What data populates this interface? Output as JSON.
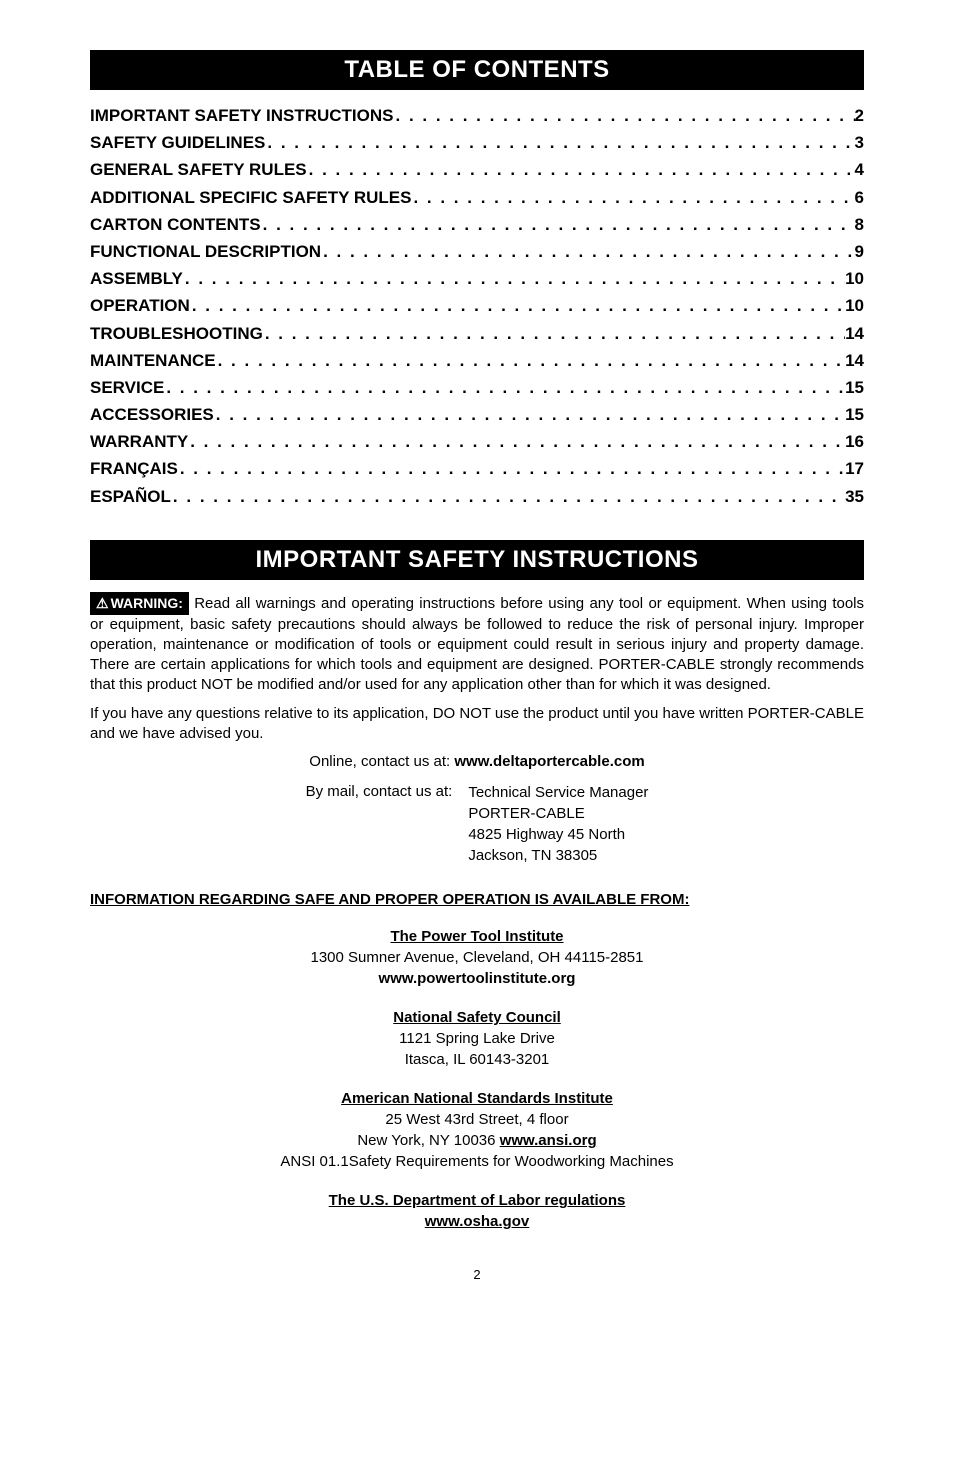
{
  "colors": {
    "background": "#ffffff",
    "header_bg": "#000000",
    "header_text": "#ffffff",
    "body_text": "#000000"
  },
  "typography": {
    "header_fontsize": 24,
    "toc_fontsize": 17,
    "body_fontsize": 15,
    "pagenum_fontsize": 13
  },
  "toc_header": "TABLE OF CONTENTS",
  "toc_items": [
    {
      "label": "IMPORTANT SAFETY INSTRUCTIONS",
      "page": "2"
    },
    {
      "label": "SAFETY GUIDELINES",
      "page": "3"
    },
    {
      "label": "GENERAL SAFETY RULES",
      "page": "4"
    },
    {
      "label": "ADDITIONAL SPECIFIC SAFETY RULES",
      "page": "6"
    },
    {
      "label": "CARTON CONTENTS",
      "page": "8"
    },
    {
      "label": "FUNCTIONAL DESCRIPTION",
      "page": "9"
    },
    {
      "label": "ASSEMBLY",
      "page": "10"
    },
    {
      "label": "OPERATION",
      "page": "10"
    },
    {
      "label": "TROUBLESHOOTING",
      "page": "14"
    },
    {
      "label": "MAINTENANCE",
      "page": "14"
    },
    {
      "label": "SERVICE",
      "page": "15"
    },
    {
      "label": "ACCESSORIES",
      "page": "15"
    },
    {
      "label": "WARRANTY",
      "page": "16"
    },
    {
      "label": "FRANÇAIS",
      "page": "17"
    },
    {
      "label": "ESPAÑOL",
      "page": "35"
    }
  ],
  "safety_header": "IMPORTANT SAFETY INSTRUCTIONS",
  "warning_label": "WARNING:",
  "warning_paragraph_1": " Read all warnings and operating instructions before using any tool or equipment.  When using tools or equipment, basic safety precautions should always be followed to reduce the risk of personal injury. Improper operation, maintenance or modification of tools or equipment could result in serious injury and property damage. There are certain applications for which tools and equipment are designed. PORTER-CABLE strongly recommends that this product NOT be modified and/or used for any application other than for which it was designed.",
  "warning_paragraph_2": "If you have any questions relative to its application, DO NOT use the product until you have written PORTER-CABLE and we have advised you.",
  "online_contact_label": "Online, contact us at: ",
  "online_contact_url": "www.deltaportercable.com",
  "mail_contact_label": "By mail, contact us at:",
  "mail_contact": {
    "line1": "Technical Service Manager",
    "line2": "PORTER-CABLE",
    "line3": "4825 Highway 45 North",
    "line4": "Jackson, TN 38305"
  },
  "info_heading": "INFORMATION REGARDING SAFE AND PROPER OPERATION IS AVAILABLE FROM:",
  "org1": {
    "title": "The Power Tool Institute",
    "line1": "1300 Sumner Avenue, Cleveland, OH 44115-2851",
    "url": "www.powertoolinstitute.org"
  },
  "org2": {
    "title": "National Safety Council",
    "line1": "1121 Spring Lake Drive",
    "line2": "Itasca, IL 60143-3201"
  },
  "org3": {
    "title": "American National Standards Institute",
    "line1": "25 West 43rd Street, 4 floor",
    "line2_prefix": "New York, NY 10036 ",
    "line2_url": "www.ansi.org",
    "line3": "ANSI 01.1Safety Requirements for Woodworking Machines"
  },
  "org4": {
    "title": "The U.S. Department of Labor regulations",
    "url": "www.osha.gov"
  },
  "page_number": "2",
  "dots_fill": " . . . . . . . . . . . . . . . . . . . . . . . . . . . . . . . . . . . . . . . . . . . . . . . . . . . . . . . . . . . . . . . . . . . . . ."
}
